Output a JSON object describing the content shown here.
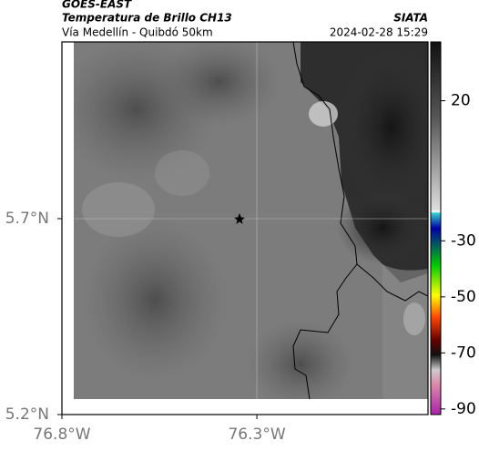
{
  "header": {
    "source": "GOES-EAST",
    "title": "Temperatura de Brillo CH13",
    "agency": "SIATA",
    "subtitle": "Vía Medellín - Quibdó 50km",
    "timestamp": "2024-02-28 15:29"
  },
  "map": {
    "xlim": [
      -76.8,
      -75.861
    ],
    "ylim": [
      5.2,
      6.151
    ],
    "xticks": [
      {
        "value": -76.8,
        "label": "76.8°W"
      },
      {
        "value": -76.3,
        "label": "76.3°W"
      }
    ],
    "yticks": [
      {
        "value": 5.2,
        "label": "5.2°N"
      },
      {
        "value": 5.7,
        "label": "5.7°N"
      }
    ]
  },
  "colorbar": {
    "lim": [
      41,
      -92
    ],
    "ticks": [
      20,
      -30,
      -50,
      -70,
      -90
    ]
  }
}
